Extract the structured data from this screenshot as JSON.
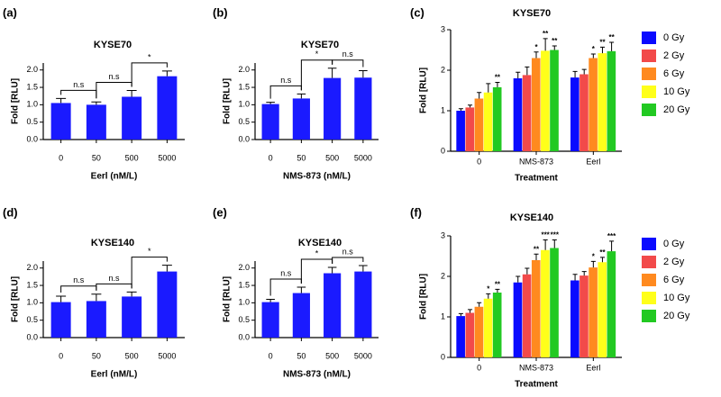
{
  "chart_data": [
    {
      "type": "bar",
      "panel": "(a)",
      "title": "KYSE70",
      "x_label": "Eerl (nM/L)",
      "y_label": "Fold [RLU]",
      "categories": [
        "0",
        "50",
        "500",
        "5000"
      ],
      "values": [
        1.05,
        1.0,
        1.23,
        1.82
      ],
      "errors": [
        0.13,
        0.08,
        0.18,
        0.15
      ],
      "color": "#1a1aff",
      "ylim": [
        0,
        2.2
      ],
      "yticks": [
        {
          "value": 0,
          "label": "0.0"
        },
        {
          "value": 0.5,
          "label": "0.5"
        },
        {
          "value": 1,
          "label": "1.0"
        },
        {
          "value": 1.5,
          "label": "1.5"
        },
        {
          "value": 2,
          "label": "2.0"
        }
      ],
      "comparisons": [
        {
          "from": 0,
          "to": 1,
          "label": "n.s"
        },
        {
          "from": 1,
          "to": 2,
          "label": "n.s"
        },
        {
          "from": 2,
          "to": 3,
          "label": "*"
        }
      ]
    },
    {
      "type": "bar",
      "panel": "(b)",
      "title": "KYSE70",
      "x_label": "NMS-873 (nM/L)",
      "y_label": "Fold [RLU]",
      "categories": [
        "0",
        "50",
        "500",
        "5000"
      ],
      "values": [
        1.02,
        1.18,
        1.77,
        1.78
      ],
      "errors": [
        0.05,
        0.13,
        0.28,
        0.2
      ],
      "color": "#1a1aff",
      "ylim": [
        0,
        2.2
      ],
      "yticks": [
        {
          "value": 0,
          "label": "0.0"
        },
        {
          "value": 0.5,
          "label": "0.5"
        },
        {
          "value": 1,
          "label": "1.0"
        },
        {
          "value": 1.5,
          "label": "1.5"
        },
        {
          "value": 2,
          "label": "2.0"
        }
      ],
      "comparisons": [
        {
          "from": 0,
          "to": 1,
          "label": "n.s"
        },
        {
          "from": 1,
          "to": 2,
          "label": "*"
        },
        {
          "from": 2,
          "to": 3,
          "label": "n.s"
        }
      ]
    },
    {
      "type": "grouped_bar",
      "panel": "(c)",
      "title": "KYSE70",
      "x_label": "Treatment",
      "y_label": "Fold [RLU]",
      "categories": [
        "0",
        "NMS-873",
        "Eerl"
      ],
      "ylim": [
        0,
        3
      ],
      "yticks": [
        0,
        1,
        2,
        3
      ],
      "series": [
        {
          "name": "0 Gy",
          "color": "#0a0aff",
          "values": [
            1.0,
            1.8,
            1.82
          ],
          "errors": [
            0.05,
            0.15,
            0.15
          ],
          "sig_labels": [
            null,
            null,
            null
          ]
        },
        {
          "name": "2 Gy",
          "color": "#f24a4a",
          "values": [
            1.08,
            1.88,
            1.9
          ],
          "errors": [
            0.06,
            0.2,
            0.12
          ],
          "sig_labels": [
            null,
            null,
            null
          ]
        },
        {
          "name": "6 Gy",
          "color": "#ff8a1f",
          "values": [
            1.3,
            2.3,
            2.3
          ],
          "errors": [
            0.15,
            0.15,
            0.1
          ],
          "sig_labels": [
            null,
            "*",
            "*"
          ]
        },
        {
          "name": "10 Gy",
          "color": "#ffff1a",
          "values": [
            1.45,
            2.48,
            2.42
          ],
          "errors": [
            0.22,
            0.3,
            0.15
          ],
          "sig_labels": [
            null,
            "**",
            "**"
          ]
        },
        {
          "name": "20 Gy",
          "color": "#22c922",
          "values": [
            1.58,
            2.5,
            2.47
          ],
          "errors": [
            0.12,
            0.1,
            0.22
          ],
          "sig_labels": [
            "**",
            "**",
            "**"
          ]
        }
      ]
    },
    {
      "type": "bar",
      "panel": "(d)",
      "title": "KYSE140",
      "x_label": "Eerl (nM/L)",
      "y_label": "Fold [RLU]",
      "categories": [
        "0",
        "50",
        "500",
        "5000"
      ],
      "values": [
        1.02,
        1.05,
        1.18,
        1.9
      ],
      "errors": [
        0.17,
        0.2,
        0.13,
        0.18
      ],
      "color": "#1a1aff",
      "ylim": [
        0,
        2.2
      ],
      "yticks": [
        {
          "value": 0,
          "label": "0.0"
        },
        {
          "value": 0.5,
          "label": "0.5"
        },
        {
          "value": 1,
          "label": "1.0"
        },
        {
          "value": 1.5,
          "label": "1.5"
        },
        {
          "value": 2,
          "label": "2.0"
        }
      ],
      "comparisons": [
        {
          "from": 0,
          "to": 1,
          "label": "n.s"
        },
        {
          "from": 1,
          "to": 2,
          "label": "n.s"
        },
        {
          "from": 2,
          "to": 3,
          "label": "*"
        }
      ]
    },
    {
      "type": "bar",
      "panel": "(e)",
      "title": "KYSE140",
      "x_label": "NMS-873 (nM/L)",
      "y_label": "Fold [RLU]",
      "categories": [
        "0",
        "50",
        "500",
        "5000"
      ],
      "values": [
        1.02,
        1.28,
        1.85,
        1.9
      ],
      "errors": [
        0.08,
        0.17,
        0.17,
        0.17
      ],
      "color": "#1a1aff",
      "ylim": [
        0,
        2.2
      ],
      "yticks": [
        {
          "value": 0,
          "label": "0.0"
        },
        {
          "value": 0.5,
          "label": "0.5"
        },
        {
          "value": 1,
          "label": "1.0"
        },
        {
          "value": 1.5,
          "label": "1.5"
        },
        {
          "value": 2,
          "label": "2.0"
        }
      ],
      "comparisons": [
        {
          "from": 0,
          "to": 1,
          "label": "n.s"
        },
        {
          "from": 1,
          "to": 2,
          "label": "*"
        },
        {
          "from": 2,
          "to": 3,
          "label": "n.s"
        }
      ]
    },
    {
      "type": "grouped_bar",
      "panel": "(f)",
      "title": "KYSE140",
      "x_label": "Treatment",
      "y_label": "Fold [RLU]",
      "categories": [
        "0",
        "NMS-873",
        "Eerl"
      ],
      "ylim": [
        0,
        3
      ],
      "yticks": [
        0,
        1,
        2,
        3
      ],
      "series": [
        {
          "name": "0 Gy",
          "color": "#0a0aff",
          "values": [
            1.02,
            1.85,
            1.9
          ],
          "errors": [
            0.06,
            0.15,
            0.15
          ],
          "sig_labels": [
            null,
            null,
            null
          ]
        },
        {
          "name": "2 Gy",
          "color": "#f24a4a",
          "values": [
            1.1,
            2.05,
            2.02
          ],
          "errors": [
            0.08,
            0.15,
            0.1
          ],
          "sig_labels": [
            null,
            null,
            null
          ]
        },
        {
          "name": "6 Gy",
          "color": "#ff8a1f",
          "values": [
            1.25,
            2.4,
            2.22
          ],
          "errors": [
            0.1,
            0.15,
            0.15
          ],
          "sig_labels": [
            null,
            "**",
            "*"
          ]
        },
        {
          "name": "10 Gy",
          "color": "#ffff1a",
          "values": [
            1.45,
            2.65,
            2.35
          ],
          "errors": [
            0.12,
            0.25,
            0.12
          ],
          "sig_labels": [
            "*",
            "***",
            "**"
          ]
        },
        {
          "name": "20 Gy",
          "color": "#22c922",
          "values": [
            1.6,
            2.7,
            2.62
          ],
          "errors": [
            0.08,
            0.2,
            0.25
          ],
          "sig_labels": [
            "**",
            "***",
            "***"
          ]
        }
      ]
    }
  ]
}
